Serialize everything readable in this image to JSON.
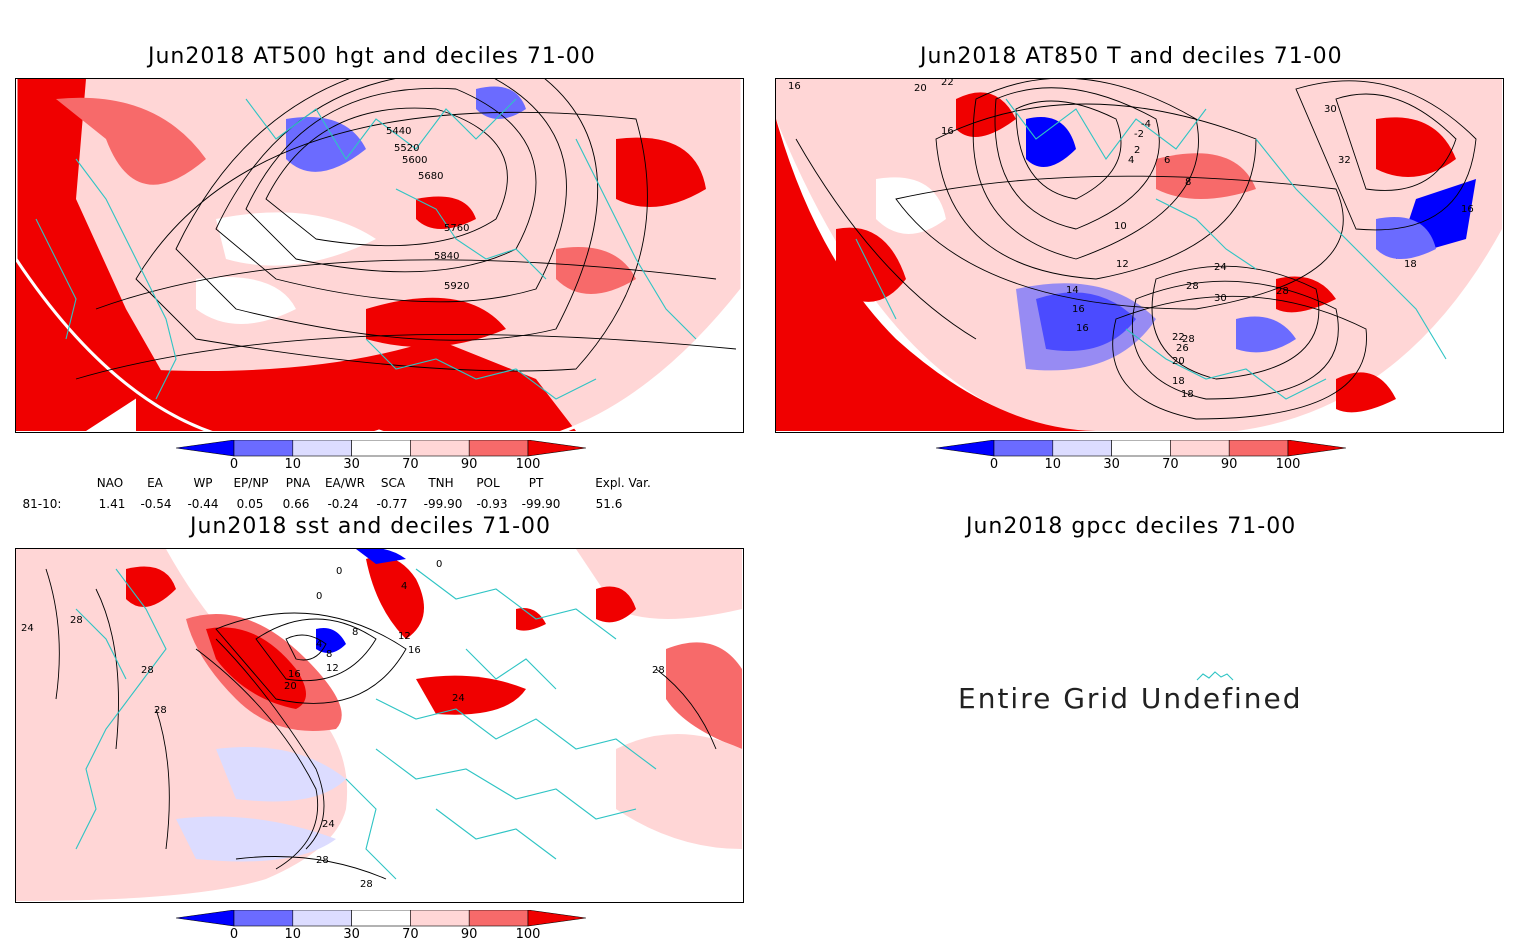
{
  "panels": {
    "hgt": {
      "title": "Jun2018 AT500 hgt and deciles 71-00",
      "contour_labels": [
        "5440",
        "5520",
        "5600",
        "5680",
        "5760",
        "5840",
        "5920"
      ]
    },
    "t850": {
      "title": "Jun2018 AT850 T and deciles 71-00",
      "contour_labels": [
        "16",
        "20",
        "22",
        "16",
        "-4",
        "-2",
        "2",
        "4",
        "6",
        "8",
        "10",
        "12",
        "14",
        "16",
        "16",
        "18",
        "20",
        "22",
        "24",
        "26",
        "28",
        "28",
        "30",
        "30",
        "32",
        "28",
        "18",
        "18",
        "16"
      ]
    },
    "sst": {
      "title": "Jun2018 sst and deciles 71-00",
      "contour_labels": [
        "0",
        "0",
        "0",
        "4",
        "4",
        "8",
        "12",
        "16",
        "20",
        "24",
        "28",
        "28",
        "28",
        "28",
        "24",
        "24",
        "28",
        "28",
        "8",
        "12",
        "16"
      ]
    },
    "gpcc": {
      "title": "Jun2018 gpcc deciles 71-00",
      "message": "Entire Grid Undefined"
    }
  },
  "colorbar": {
    "labels": [
      "0",
      "10",
      "30",
      "70",
      "90",
      "100"
    ],
    "colors": [
      "#0000ff",
      "#6b6bff",
      "#dcdcff",
      "#ffffff",
      "#ffd6d6",
      "#f76a6a",
      "#f00000"
    ]
  },
  "indices": {
    "headers": [
      "NAO",
      "EA",
      "WP",
      "EP/NP",
      "PNA",
      "EA/WR",
      "SCA",
      "TNH",
      "POL",
      "PT",
      "Expl. Var."
    ],
    "row_label": "81-10:",
    "values": [
      "1.41",
      "-0.54",
      "-0.44",
      "0.05",
      "0.66",
      "-0.24",
      "-0.77",
      "-99.90",
      "-0.93",
      "-99.90",
      "51.6"
    ]
  }
}
